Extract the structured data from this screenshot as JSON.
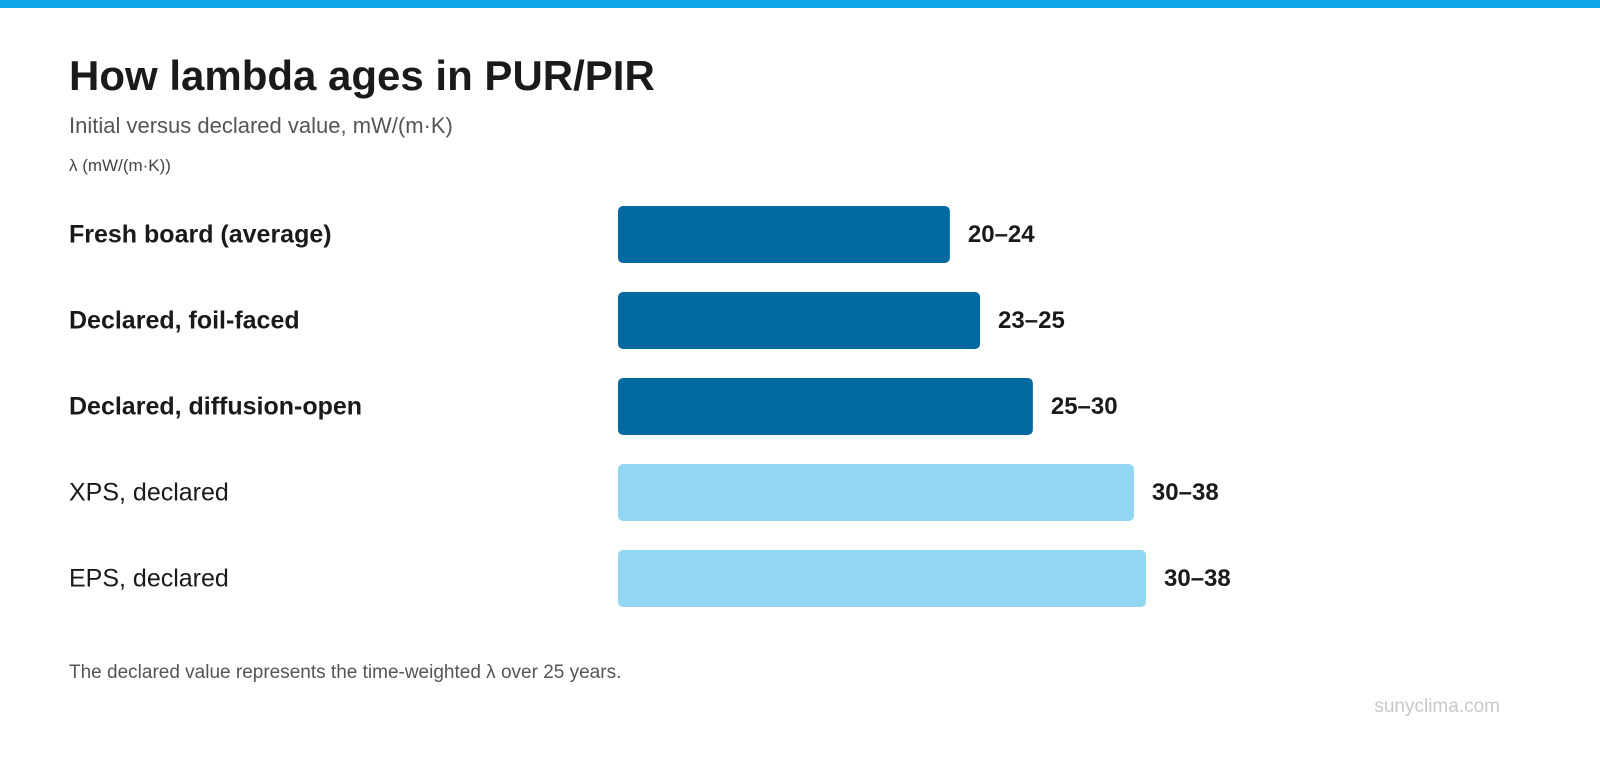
{
  "chart_data": {
    "type": "bar",
    "orientation": "horizontal",
    "title": "How lambda ages in PUR/PIR",
    "subtitle": "Initial versus declared value, mW/(m·K)",
    "unit_label": "λ (mW/(m·K))",
    "categories": [
      "Fresh board (average)",
      "Declared, foil-faced",
      "Declared, diffusion-open",
      "XPS, declared",
      "EPS, declared"
    ],
    "values": [
      22,
      24,
      27.5,
      34.2,
      35
    ],
    "value_labels": [
      "20–24",
      "23–25",
      "25–30",
      "30–38",
      "30–38"
    ],
    "highlighted": [
      true,
      true,
      true,
      false,
      false
    ],
    "xlim": [
      0,
      35
    ],
    "grid": false,
    "legend": "none"
  },
  "footnote": "The declared value represents the time-weighted λ over 25 years.",
  "watermark": "sunyclima.com",
  "colors": {
    "top_bar": "#0ea5e9",
    "highlight_bar": "#0369a1",
    "muted_bar": "#93d6f4",
    "label_text": "#1a1a1a"
  }
}
